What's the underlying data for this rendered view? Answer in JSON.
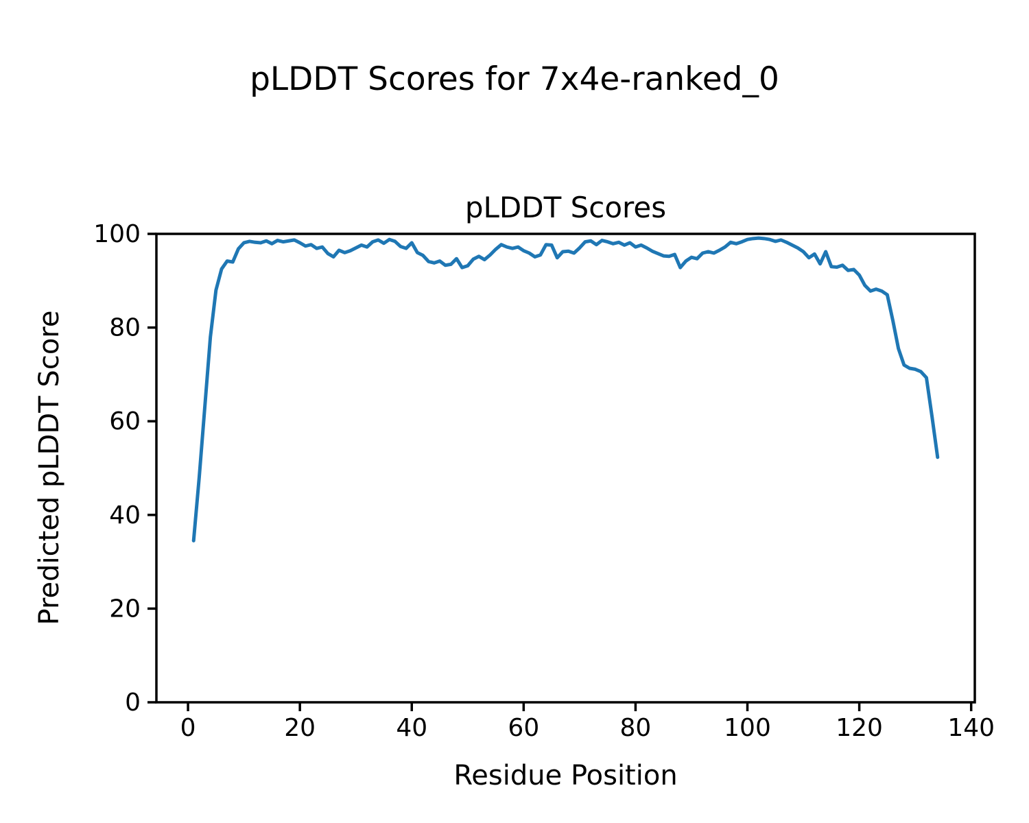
{
  "figure": {
    "suptitle": "pLDDT Scores for 7x4e-ranked_0"
  },
  "chart_data": {
    "type": "line",
    "title": "pLDDT Scores",
    "xlabel": "Residue Position",
    "ylabel": "Predicted pLDDT Score",
    "series_color": "#1f77b4",
    "xlim": [
      -5.65,
      140.65
    ],
    "ylim": [
      0,
      100
    ],
    "xticks": [
      0,
      20,
      40,
      60,
      80,
      100,
      120,
      140
    ],
    "yticks": [
      0,
      20,
      40,
      60,
      80,
      100
    ],
    "grid": false,
    "legend": "none",
    "x": [
      1,
      2,
      3,
      4,
      5,
      6,
      7,
      8,
      9,
      10,
      11,
      12,
      13,
      14,
      15,
      16,
      17,
      18,
      19,
      20,
      21,
      22,
      23,
      24,
      25,
      26,
      27,
      28,
      29,
      30,
      31,
      32,
      33,
      34,
      35,
      36,
      37,
      38,
      39,
      40,
      41,
      42,
      43,
      44,
      45,
      46,
      47,
      48,
      49,
      50,
      51,
      52,
      53,
      54,
      55,
      56,
      57,
      58,
      59,
      60,
      61,
      62,
      63,
      64,
      65,
      66,
      67,
      68,
      69,
      70,
      71,
      72,
      73,
      74,
      75,
      76,
      77,
      78,
      79,
      80,
      81,
      82,
      83,
      84,
      85,
      86,
      87,
      88,
      89,
      90,
      91,
      92,
      93,
      94,
      95,
      96,
      97,
      98,
      99,
      100,
      101,
      102,
      103,
      104,
      105,
      106,
      107,
      108,
      109,
      110,
      111,
      112,
      113,
      114,
      115,
      116,
      117,
      118,
      119,
      120,
      121,
      122,
      123,
      124,
      125,
      126,
      127,
      128,
      129,
      130,
      131,
      132,
      133,
      134
    ],
    "series": [
      {
        "name": "pLDDT",
        "color": "#1f77b4",
        "values": [
          34.5,
          48.0,
          63.0,
          78.0,
          88.0,
          92.5,
          94.2,
          94.0,
          96.8,
          98.1,
          98.4,
          98.2,
          98.1,
          98.5,
          97.9,
          98.6,
          98.3,
          98.5,
          98.7,
          98.1,
          97.4,
          97.7,
          96.9,
          97.2,
          95.8,
          95.1,
          96.5,
          96.0,
          96.4,
          97.0,
          97.6,
          97.2,
          98.3,
          98.7,
          98.0,
          98.8,
          98.4,
          97.3,
          96.9,
          98.1,
          96.0,
          95.4,
          94.1,
          93.8,
          94.2,
          93.3,
          93.5,
          94.7,
          92.8,
          93.2,
          94.6,
          95.2,
          94.5,
          95.5,
          96.7,
          97.7,
          97.2,
          96.9,
          97.2,
          96.4,
          95.9,
          95.1,
          95.5,
          97.7,
          97.6,
          94.9,
          96.2,
          96.3,
          95.9,
          97.0,
          98.3,
          98.5,
          97.7,
          98.6,
          98.3,
          97.9,
          98.2,
          97.6,
          98.1,
          97.2,
          97.6,
          97.0,
          96.3,
          95.8,
          95.3,
          95.2,
          95.6,
          92.8,
          94.2,
          95.0,
          94.7,
          95.9,
          96.2,
          95.9,
          96.5,
          97.2,
          98.2,
          97.9,
          98.3,
          98.8,
          99.0,
          99.1,
          99.0,
          98.8,
          98.4,
          98.7,
          98.2,
          97.6,
          97.0,
          96.2,
          94.9,
          95.7,
          93.6,
          96.2,
          93.0,
          92.9,
          93.3,
          92.2,
          92.4,
          91.2,
          89.0,
          87.8,
          88.2,
          87.8,
          87.0,
          81.5,
          75.5,
          72.0,
          71.3,
          71.1,
          70.6,
          69.3,
          61.0,
          52.3
        ]
      }
    ]
  }
}
